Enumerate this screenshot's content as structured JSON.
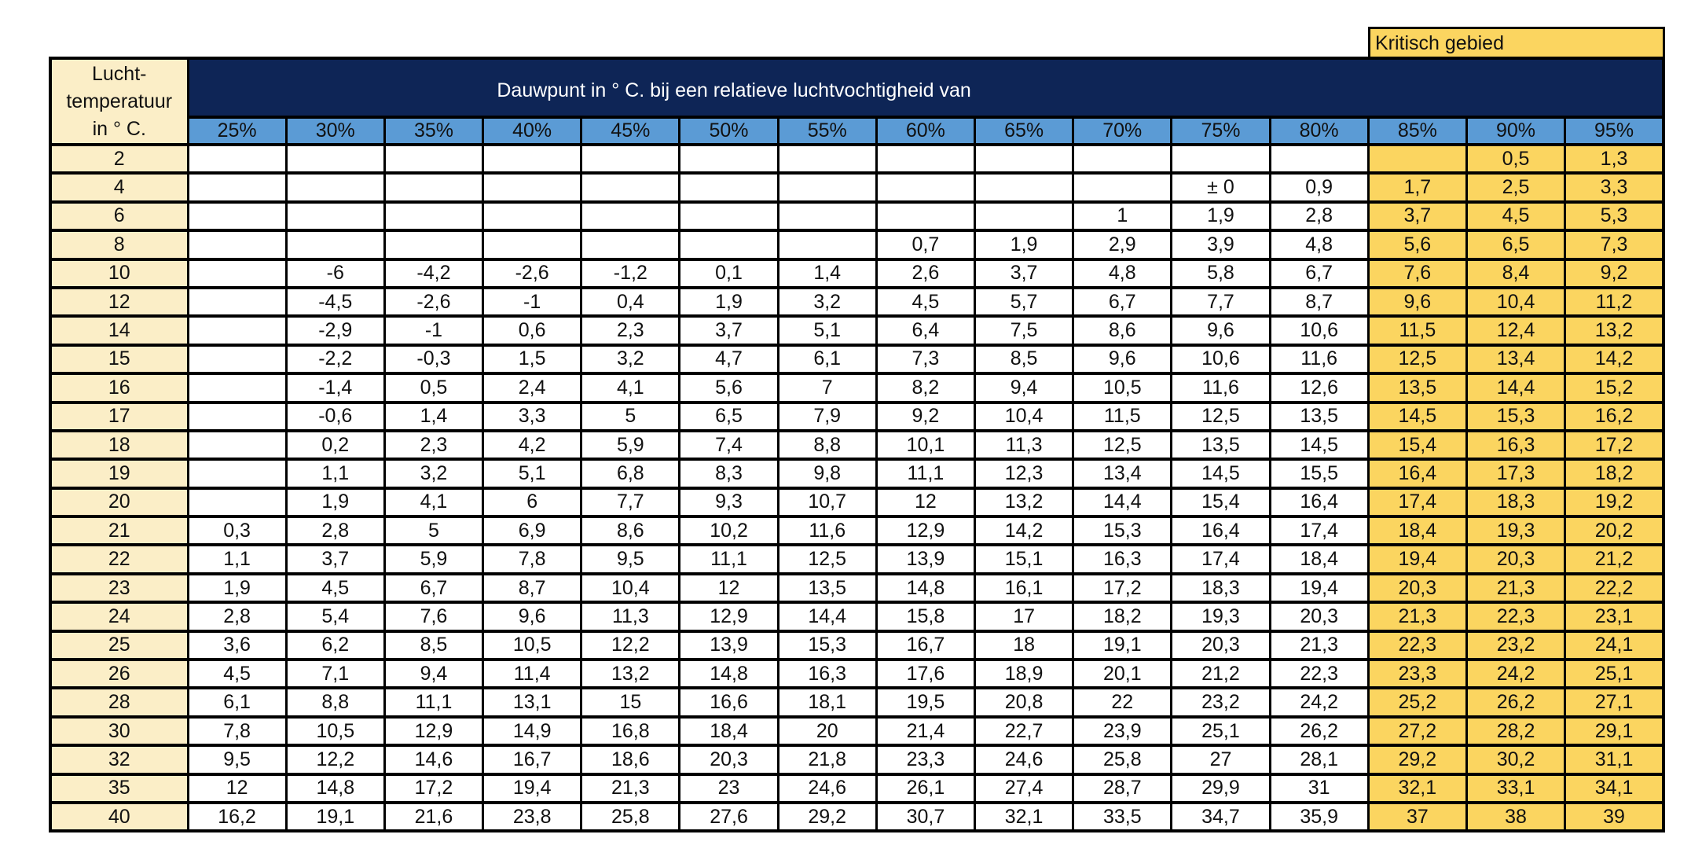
{
  "critical_label": "Kritisch gebied",
  "corner_lines": [
    "Lucht-",
    "temperatuur",
    "in ° C."
  ],
  "main_header": "Dauwpunt in ° C. bij een relatieve luchtvochtigheid van",
  "columns": [
    "25%",
    "30%",
    "35%",
    "40%",
    "45%",
    "50%",
    "55%",
    "60%",
    "65%",
    "70%",
    "75%",
    "80%",
    "85%",
    "90%",
    "95%"
  ],
  "critical_start": 12,
  "colors": {
    "navy_header": "#0E2556",
    "blue_header": "#5B9BD5",
    "header_text": "#17375E",
    "cream": "#FBEEC7",
    "critical_yellow": "#FBD560",
    "border": "#000000",
    "title_text": "#FFFFFF"
  },
  "rows": [
    {
      "temp": "2",
      "values": [
        "",
        "",
        "",
        "",
        "",
        "",
        "",
        "",
        "",
        "",
        "",
        "",
        "",
        "0,5",
        "1,3"
      ]
    },
    {
      "temp": "4",
      "values": [
        "",
        "",
        "",
        "",
        "",
        "",
        "",
        "",
        "",
        "",
        "± 0",
        "0,9",
        "1,7",
        "2,5",
        "3,3"
      ]
    },
    {
      "temp": "6",
      "values": [
        "",
        "",
        "",
        "",
        "",
        "",
        "",
        "",
        "",
        "1",
        "1,9",
        "2,8",
        "3,7",
        "4,5",
        "5,3"
      ]
    },
    {
      "temp": "8",
      "values": [
        "",
        "",
        "",
        "",
        "",
        "",
        "",
        "0,7",
        "1,9",
        "2,9",
        "3,9",
        "4,8",
        "5,6",
        "6,5",
        "7,3"
      ]
    },
    {
      "temp": "10",
      "values": [
        "",
        "-6",
        "-4,2",
        "-2,6",
        "-1,2",
        "0,1",
        "1,4",
        "2,6",
        "3,7",
        "4,8",
        "5,8",
        "6,7",
        "7,6",
        "8,4",
        "9,2"
      ]
    },
    {
      "temp": "12",
      "values": [
        "",
        "-4,5",
        "-2,6",
        "-1",
        "0,4",
        "1,9",
        "3,2",
        "4,5",
        "5,7",
        "6,7",
        "7,7",
        "8,7",
        "9,6",
        "10,4",
        "11,2"
      ]
    },
    {
      "temp": "14",
      "values": [
        "",
        "-2,9",
        "-1",
        "0,6",
        "2,3",
        "3,7",
        "5,1",
        "6,4",
        "7,5",
        "8,6",
        "9,6",
        "10,6",
        "11,5",
        "12,4",
        "13,2"
      ]
    },
    {
      "temp": "15",
      "values": [
        "",
        "-2,2",
        "-0,3",
        "1,5",
        "3,2",
        "4,7",
        "6,1",
        "7,3",
        "8,5",
        "9,6",
        "10,6",
        "11,6",
        "12,5",
        "13,4",
        "14,2"
      ]
    },
    {
      "temp": "16",
      "values": [
        "",
        "-1,4",
        "0,5",
        "2,4",
        "4,1",
        "5,6",
        "7",
        "8,2",
        "9,4",
        "10,5",
        "11,6",
        "12,6",
        "13,5",
        "14,4",
        "15,2"
      ]
    },
    {
      "temp": "17",
      "values": [
        "",
        "-0,6",
        "1,4",
        "3,3",
        "5",
        "6,5",
        "7,9",
        "9,2",
        "10,4",
        "11,5",
        "12,5",
        "13,5",
        "14,5",
        "15,3",
        "16,2"
      ]
    },
    {
      "temp": "18",
      "values": [
        "",
        "0,2",
        "2,3",
        "4,2",
        "5,9",
        "7,4",
        "8,8",
        "10,1",
        "11,3",
        "12,5",
        "13,5",
        "14,5",
        "15,4",
        "16,3",
        "17,2"
      ]
    },
    {
      "temp": "19",
      "values": [
        "",
        "1,1",
        "3,2",
        "5,1",
        "6,8",
        "8,3",
        "9,8",
        "11,1",
        "12,3",
        "13,4",
        "14,5",
        "15,5",
        "16,4",
        "17,3",
        "18,2"
      ]
    },
    {
      "temp": "20",
      "values": [
        "",
        "1,9",
        "4,1",
        "6",
        "7,7",
        "9,3",
        "10,7",
        "12",
        "13,2",
        "14,4",
        "15,4",
        "16,4",
        "17,4",
        "18,3",
        "19,2"
      ]
    },
    {
      "temp": "21",
      "values": [
        "0,3",
        "2,8",
        "5",
        "6,9",
        "8,6",
        "10,2",
        "11,6",
        "12,9",
        "14,2",
        "15,3",
        "16,4",
        "17,4",
        "18,4",
        "19,3",
        "20,2"
      ]
    },
    {
      "temp": "22",
      "values": [
        "1,1",
        "3,7",
        "5,9",
        "7,8",
        "9,5",
        "11,1",
        "12,5",
        "13,9",
        "15,1",
        "16,3",
        "17,4",
        "18,4",
        "19,4",
        "20,3",
        "21,2"
      ]
    },
    {
      "temp": "23",
      "values": [
        "1,9",
        "4,5",
        "6,7",
        "8,7",
        "10,4",
        "12",
        "13,5",
        "14,8",
        "16,1",
        "17,2",
        "18,3",
        "19,4",
        "20,3",
        "21,3",
        "22,2"
      ]
    },
    {
      "temp": "24",
      "values": [
        "2,8",
        "5,4",
        "7,6",
        "9,6",
        "11,3",
        "12,9",
        "14,4",
        "15,8",
        "17",
        "18,2",
        "19,3",
        "20,3",
        "21,3",
        "22,3",
        "23,1"
      ]
    },
    {
      "temp": "25",
      "values": [
        "3,6",
        "6,2",
        "8,5",
        "10,5",
        "12,2",
        "13,9",
        "15,3",
        "16,7",
        "18",
        "19,1",
        "20,3",
        "21,3",
        "22,3",
        "23,2",
        "24,1"
      ]
    },
    {
      "temp": "26",
      "values": [
        "4,5",
        "7,1",
        "9,4",
        "11,4",
        "13,2",
        "14,8",
        "16,3",
        "17,6",
        "18,9",
        "20,1",
        "21,2",
        "22,3",
        "23,3",
        "24,2",
        "25,1"
      ]
    },
    {
      "temp": "28",
      "values": [
        "6,1",
        "8,8",
        "11,1",
        "13,1",
        "15",
        "16,6",
        "18,1",
        "19,5",
        "20,8",
        "22",
        "23,2",
        "24,2",
        "25,2",
        "26,2",
        "27,1"
      ]
    },
    {
      "temp": "30",
      "values": [
        "7,8",
        "10,5",
        "12,9",
        "14,9",
        "16,8",
        "18,4",
        "20",
        "21,4",
        "22,7",
        "23,9",
        "25,1",
        "26,2",
        "27,2",
        "28,2",
        "29,1"
      ]
    },
    {
      "temp": "32",
      "values": [
        "9,5",
        "12,2",
        "14,6",
        "16,7",
        "18,6",
        "20,3",
        "21,8",
        "23,3",
        "24,6",
        "25,8",
        "27",
        "28,1",
        "29,2",
        "30,2",
        "31,1"
      ]
    },
    {
      "temp": "35",
      "values": [
        "12",
        "14,8",
        "17,2",
        "19,4",
        "21,3",
        "23",
        "24,6",
        "26,1",
        "27,4",
        "28,7",
        "29,9",
        "31",
        "32,1",
        "33,1",
        "34,1"
      ]
    },
    {
      "temp": "40",
      "values": [
        "16,2",
        "19,1",
        "21,6",
        "23,8",
        "25,8",
        "27,6",
        "29,2",
        "30,7",
        "32,1",
        "33,5",
        "34,7",
        "35,9",
        "37",
        "38",
        "39"
      ]
    }
  ]
}
